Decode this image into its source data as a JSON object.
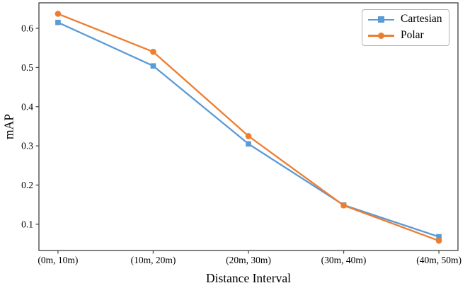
{
  "chart_data": {
    "type": "line",
    "title": "",
    "xlabel": "Distance Interval",
    "ylabel": "mAP",
    "categories": [
      "(0m, 10m)",
      "(10m, 20m)",
      "(20m, 30m)",
      "(30m, 40m)",
      "(40m, 50m)"
    ],
    "ytick_labels": [
      "0.1",
      "0.2",
      "0.3",
      "0.4",
      "0.5",
      "0.6"
    ],
    "ytick_values": [
      0.1,
      0.2,
      0.3,
      0.4,
      0.5,
      0.6
    ],
    "ylim": [
      0.033,
      0.665
    ],
    "xlim_units": [
      -0.2,
      4.2
    ],
    "grid": false,
    "legend_position": "upper-right",
    "series": [
      {
        "name": "Cartesian",
        "marker": "square",
        "color": "#5B9BD5",
        "values": [
          0.615,
          0.504,
          0.305,
          0.149,
          0.068
        ]
      },
      {
        "name": "Polar",
        "marker": "circle",
        "color": "#ED7D31",
        "values": [
          0.637,
          0.54,
          0.325,
          0.148,
          0.058
        ]
      }
    ],
    "colors": {
      "axis": "#4d4d4d",
      "tick_label": "#000000",
      "legend_border": "#b3b3b3",
      "background": "#ffffff"
    }
  }
}
